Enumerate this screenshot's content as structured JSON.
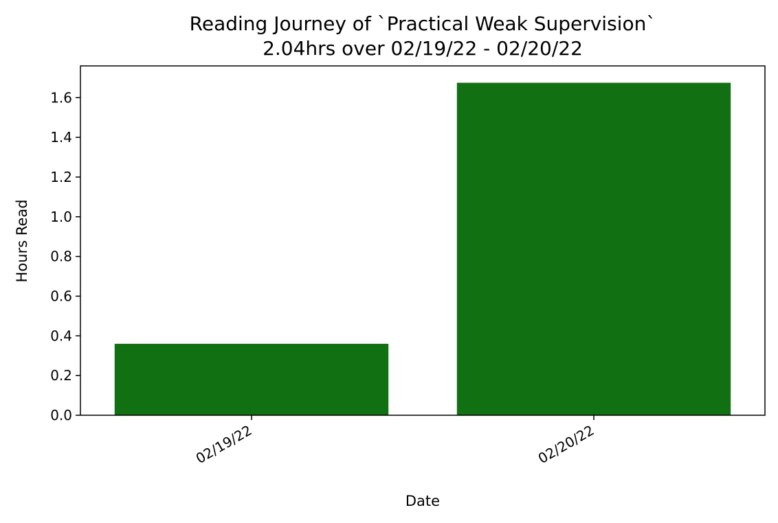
{
  "chart_data": {
    "type": "bar",
    "title": "Reading Journey of `Practical Weak Supervision`",
    "subtitle": "2.04hrs over 02/19/22 - 02/20/22",
    "xlabel": "Date",
    "ylabel": "Hours Read",
    "categories": [
      "02/19/22",
      "02/20/22"
    ],
    "values": [
      0.36,
      1.675
    ],
    "ylim": [
      0,
      1.76
    ],
    "yticks": [
      "0.0",
      "0.2",
      "0.4",
      "0.6",
      "0.8",
      "1.0",
      "1.2",
      "1.4",
      "1.6"
    ],
    "bar_color": "#117011",
    "grid": false,
    "legend": "none"
  }
}
